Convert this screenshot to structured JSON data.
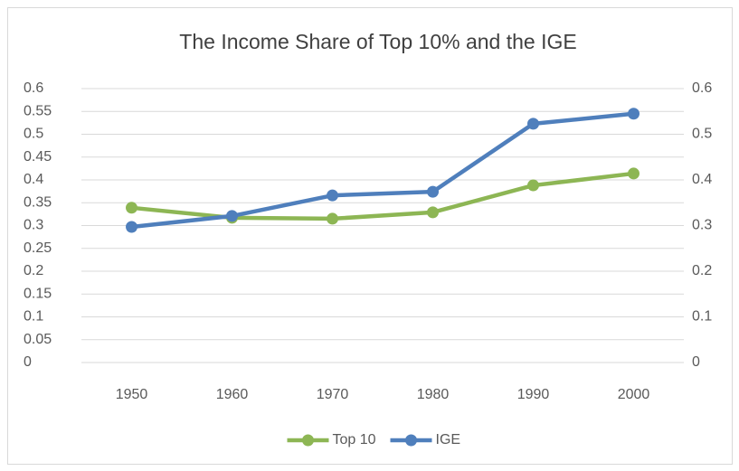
{
  "chart_data": {
    "type": "line",
    "title": "The Income Share of Top 10% and the IGE",
    "categories": [
      "1950",
      "1960",
      "1970",
      "1980",
      "1990",
      "2000"
    ],
    "series": [
      {
        "name": "Top 10",
        "color": "#8db654",
        "values": [
          0.339,
          0.317,
          0.315,
          0.329,
          0.388,
          0.414
        ]
      },
      {
        "name": "IGE",
        "color": "#4f7fbc",
        "values": [
          0.297,
          0.321,
          0.366,
          0.374,
          0.523,
          0.545
        ],
        "axis": "y2"
      }
    ],
    "ylim": [
      0,
      0.6
    ],
    "yticks": [
      0,
      0.05,
      0.1,
      0.15,
      0.2,
      0.25,
      0.3,
      0.35,
      0.4,
      0.45,
      0.5,
      0.55,
      0.6
    ],
    "y2lim": [
      0,
      0.6
    ],
    "y2ticks": [
      0,
      0.1,
      0.2,
      0.3,
      0.4,
      0.5,
      0.6
    ],
    "grid": true,
    "legend": "bottom"
  }
}
